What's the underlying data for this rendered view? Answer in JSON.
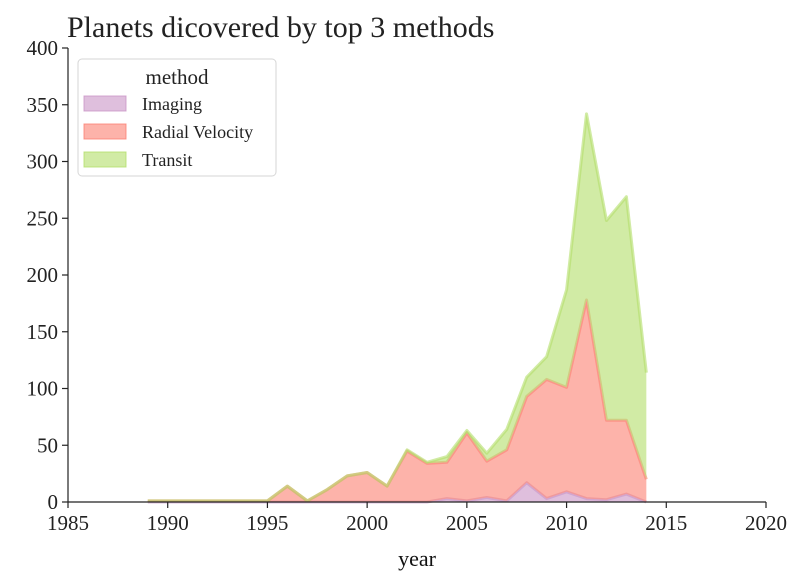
{
  "chart_data": {
    "type": "area",
    "stacked": true,
    "title": "Planets dicovered by top 3 methods",
    "xlabel": "year",
    "ylabel": "",
    "xlim": [
      1985,
      2020
    ],
    "ylim": [
      0,
      400
    ],
    "xticks": [
      1985,
      1990,
      1995,
      2000,
      2005,
      2010,
      2015,
      2020
    ],
    "yticks": [
      0,
      50,
      100,
      150,
      200,
      250,
      300,
      350,
      400
    ],
    "grid": false,
    "legend": {
      "title": "method",
      "placement": "top-left"
    },
    "x": [
      1989,
      1990,
      1991,
      1992,
      1993,
      1994,
      1995,
      1996,
      1997,
      1998,
      1999,
      2000,
      2001,
      2002,
      2003,
      2004,
      2005,
      2006,
      2007,
      2008,
      2009,
      2010,
      2011,
      2012,
      2013,
      2014
    ],
    "series": [
      {
        "name": "Imaging",
        "color": "#c994c7",
        "values": [
          0,
          0,
          0,
          0,
          0,
          0,
          0,
          0,
          0,
          0,
          0,
          0,
          0,
          0,
          0,
          3,
          1,
          4,
          1,
          17,
          3,
          9,
          3,
          2,
          7,
          0
        ]
      },
      {
        "name": "Radial Velocity",
        "color": "#fb8072",
        "values": [
          1,
          1,
          1,
          1,
          1,
          1,
          1,
          14,
          1,
          11,
          23,
          26,
          14,
          45,
          34,
          32,
          60,
          32,
          45,
          76,
          105,
          92,
          175,
          70,
          65,
          20
        ]
      },
      {
        "name": "Transit",
        "color": "#b3de69",
        "values": [
          0,
          0,
          0,
          0,
          0,
          0,
          0,
          0,
          0,
          0,
          0,
          0,
          0,
          1,
          1,
          5,
          2,
          7,
          18,
          17,
          20,
          86,
          164,
          176,
          197,
          94
        ]
      }
    ]
  }
}
